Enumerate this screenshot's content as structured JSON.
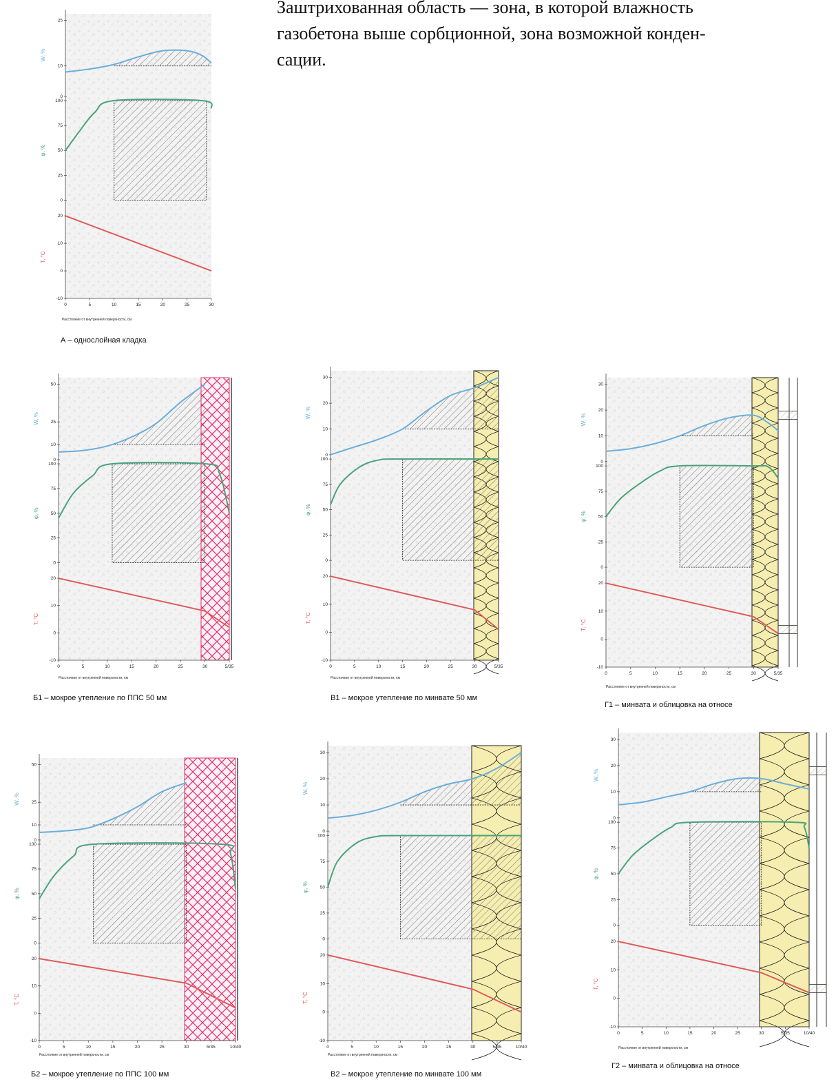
{
  "intro": {
    "line1": "Заштрихованная область — зона, в которой влажность",
    "line2": "газобетона выше сорбционной, зона возможной конден-",
    "line3": "сации."
  },
  "colors": {
    "w_curve": "#6aaedb",
    "phi_curve": "#4aa37a",
    "t_curve": "#e05a5a",
    "pps": "#e0306e",
    "minwool_fill": "#f6eeb0",
    "masonry_fill": "#f2f2f2"
  },
  "axis_labels": {
    "w": "W, %",
    "phi": "φ, %",
    "t": "T, °C",
    "x": "Расстояние от внутренней поверхности, см"
  },
  "chart_data": [
    {
      "type": "line",
      "id": "A",
      "title": "А – однослойная кладка",
      "insulation": "none",
      "x_ticks": [
        "0",
        "5",
        "10",
        "15",
        "20",
        "25",
        "30"
      ],
      "xlim": [
        0,
        30
      ],
      "w_ticks": [
        "0",
        "10",
        "25"
      ],
      "w_ylim": [
        0,
        25
      ],
      "phi_ticks": [
        "0",
        "25",
        "50",
        "75",
        "100"
      ],
      "t_ticks": [
        "-10",
        "0",
        "10",
        "20"
      ],
      "series": [
        {
          "quantity": "W",
          "x": [
            0,
            5,
            10,
            15,
            20,
            25,
            28,
            30
          ],
          "y": [
            8.0,
            9.0,
            10.5,
            13.0,
            15.0,
            15.0,
            13.5,
            11.0
          ]
        },
        {
          "quantity": "phi",
          "x": [
            0,
            3,
            6,
            10,
            28,
            30
          ],
          "y": [
            50,
            70,
            88,
            100,
            100,
            92
          ]
        },
        {
          "quantity": "T",
          "x": [
            0,
            30
          ],
          "y": [
            20,
            0
          ]
        }
      ],
      "hatched_w": {
        "x": [
          10,
          30
        ],
        "level": 10
      },
      "hatched_phi": {
        "x": [
          10,
          29
        ],
        "from": 0,
        "to": 100
      }
    },
    {
      "type": "line",
      "id": "B1",
      "title": "Б1 – мокрое утепление по ППС 50 мм",
      "insulation": "pps",
      "x_ticks": [
        "0",
        "5",
        "10",
        "15",
        "20",
        "25",
        "30",
        "5/35"
      ],
      "xlim": [
        0,
        35
      ],
      "wall_end": 30,
      "w_ticks": [
        "0",
        "10",
        "25",
        "50"
      ],
      "w_ylim": [
        0,
        50
      ],
      "phi_ticks": [
        "0",
        "25",
        "50",
        "75",
        "100"
      ],
      "t_ticks": [
        "-10",
        "0",
        "10",
        "20"
      ],
      "series": [
        {
          "quantity": "W",
          "x": [
            0,
            5,
            10,
            15,
            20,
            25,
            30
          ],
          "y": [
            5,
            6,
            9,
            15,
            24,
            38,
            50
          ]
        },
        {
          "quantity": "phi",
          "x": [
            0,
            3,
            7,
            11,
            30,
            33,
            35
          ],
          "y": [
            45,
            70,
            88,
            100,
            100,
            90,
            50
          ]
        },
        {
          "quantity": "T",
          "x": [
            0,
            30,
            35
          ],
          "y": [
            20,
            8,
            2
          ]
        }
      ],
      "hatched_w": {
        "x": [
          11,
          30
        ],
        "level": 10
      },
      "hatched_phi": {
        "x": [
          11,
          30
        ],
        "from": 0,
        "to": 100
      }
    },
    {
      "type": "line",
      "id": "V1",
      "title": "В1 – мокрое утепление по минвате 50 мм",
      "insulation": "minwool",
      "x_ticks": [
        "0",
        "5",
        "10",
        "15",
        "20",
        "25",
        "30",
        "5/35"
      ],
      "xlim": [
        0,
        35
      ],
      "wall_end": 30,
      "w_ticks": [
        "0",
        "10",
        "20",
        "30"
      ],
      "w_ylim": [
        0,
        30
      ],
      "phi_ticks": [
        "0",
        "25",
        "50",
        "75",
        "100"
      ],
      "t_ticks": [
        "-10",
        "0",
        "10",
        "20"
      ],
      "series": [
        {
          "quantity": "W",
          "x": [
            0,
            5,
            10,
            15,
            20,
            25,
            30,
            35
          ],
          "y": [
            0,
            3,
            6,
            10,
            17,
            23,
            26,
            30
          ]
        },
        {
          "quantity": "phi",
          "x": [
            0,
            2,
            6,
            10,
            15,
            35
          ],
          "y": [
            55,
            75,
            92,
            99,
            100,
            100
          ]
        },
        {
          "quantity": "T",
          "x": [
            0,
            30,
            35
          ],
          "y": [
            20,
            8,
            1
          ]
        }
      ],
      "hatched_w": {
        "x": [
          15,
          35
        ],
        "level": 10
      },
      "hatched_phi": {
        "x": [
          15,
          35
        ],
        "from": 0,
        "to": 100
      }
    },
    {
      "type": "line",
      "id": "G1",
      "title": "Г1 – минвата и облицовка на относе",
      "insulation": "minwool_facing",
      "x_ticks": [
        "0",
        "5",
        "10",
        "15",
        "20",
        "25",
        "30",
        "5/35"
      ],
      "xlim": [
        0,
        35
      ],
      "wall_end": 30,
      "w_ticks": [
        "0",
        "10",
        "20",
        "30"
      ],
      "w_ylim": [
        0,
        30
      ],
      "phi_ticks": [
        "0",
        "25",
        "50",
        "75",
        "100"
      ],
      "t_ticks": [
        "-10",
        "0",
        "10",
        "20"
      ],
      "series": [
        {
          "quantity": "W",
          "x": [
            0,
            5,
            10,
            15,
            20,
            25,
            30,
            33,
            35
          ],
          "y": [
            4,
            5,
            7,
            10,
            14,
            17,
            18,
            15,
            12
          ]
        },
        {
          "quantity": "phi",
          "x": [
            0,
            3,
            7,
            11,
            15,
            30,
            33,
            35
          ],
          "y": [
            50,
            68,
            83,
            95,
            100,
            100,
            99,
            88
          ]
        },
        {
          "quantity": "T",
          "x": [
            0,
            30,
            35
          ],
          "y": [
            20,
            8,
            2
          ]
        }
      ],
      "hatched_w": {
        "x": [
          15,
          30
        ],
        "level": 10
      },
      "hatched_phi": {
        "x": [
          15,
          30
        ],
        "from": 0,
        "to": 100
      }
    },
    {
      "type": "line",
      "id": "B2",
      "title": "Б2 – мокрое утепление по ППС 100 мм",
      "insulation": "pps",
      "x_ticks": [
        "0",
        "5",
        "10",
        "15",
        "20",
        "25",
        "30",
        "5/35",
        "10/40"
      ],
      "xlim": [
        0,
        40
      ],
      "wall_end": 30,
      "w_ticks": [
        "0",
        "10",
        "25",
        "50"
      ],
      "w_ylim": [
        0,
        50
      ],
      "phi_ticks": [
        "0",
        "25",
        "50",
        "75",
        "100"
      ],
      "t_ticks": [
        "-10",
        "0",
        "10",
        "20"
      ],
      "series": [
        {
          "quantity": "W",
          "x": [
            0,
            5,
            10,
            15,
            20,
            25,
            30
          ],
          "y": [
            5,
            6,
            8,
            14,
            22,
            32,
            38
          ]
        },
        {
          "quantity": "phi",
          "x": [
            0,
            3,
            7,
            11,
            37,
            39,
            40
          ],
          "y": [
            45,
            68,
            88,
            100,
            100,
            90,
            55
          ]
        },
        {
          "quantity": "T",
          "x": [
            0,
            30,
            40
          ],
          "y": [
            20,
            11,
            2
          ]
        }
      ],
      "hatched_w": {
        "x": [
          11,
          30
        ],
        "level": 10
      },
      "hatched_phi": {
        "x": [
          11,
          30
        ],
        "from": 0,
        "to": 100
      }
    },
    {
      "type": "line",
      "id": "V2",
      "title": "В2 – мокрое утепление по минвате 100 мм",
      "insulation": "minwool",
      "x_ticks": [
        "0",
        "5",
        "10",
        "15",
        "20",
        "25",
        "30",
        "5/35",
        "10/40"
      ],
      "xlim": [
        0,
        40
      ],
      "wall_end": 30,
      "w_ticks": [
        "0",
        "10",
        "20",
        "30"
      ],
      "w_ylim": [
        0,
        30
      ],
      "phi_ticks": [
        "0",
        "25",
        "50",
        "75",
        "100"
      ],
      "t_ticks": [
        "-10",
        "0",
        "10",
        "20"
      ],
      "series": [
        {
          "quantity": "W",
          "x": [
            0,
            5,
            10,
            15,
            20,
            25,
            30,
            35,
            40
          ],
          "y": [
            5,
            6,
            8,
            11,
            15,
            18,
            20,
            24,
            30
          ]
        },
        {
          "quantity": "phi",
          "x": [
            0,
            2,
            6,
            10,
            15,
            40
          ],
          "y": [
            50,
            75,
            93,
            99,
            100,
            100
          ]
        },
        {
          "quantity": "T",
          "x": [
            0,
            30,
            40
          ],
          "y": [
            20,
            8,
            0
          ]
        }
      ],
      "hatched_w": {
        "x": [
          15,
          40
        ],
        "level": 10
      },
      "hatched_phi": {
        "x": [
          15,
          40
        ],
        "from": 0,
        "to": 100
      }
    },
    {
      "type": "line",
      "id": "G2",
      "title": "Г2 – минвата и облицовка на относе",
      "insulation": "minwool_facing",
      "x_ticks": [
        "0",
        "5",
        "10",
        "15",
        "20",
        "25",
        "30",
        "5/35",
        "10/40"
      ],
      "xlim": [
        0,
        40
      ],
      "wall_end": 30,
      "w_ticks": [
        "0",
        "10",
        "20",
        "30"
      ],
      "w_ylim": [
        0,
        30
      ],
      "phi_ticks": [
        "0",
        "25",
        "50",
        "75",
        "100"
      ],
      "t_ticks": [
        "-10",
        "0",
        "10",
        "20"
      ],
      "series": [
        {
          "quantity": "W",
          "x": [
            0,
            5,
            10,
            15,
            20,
            25,
            30,
            35,
            40
          ],
          "y": [
            5,
            6,
            8,
            10,
            13,
            15,
            15,
            13,
            11
          ]
        },
        {
          "quantity": "phi",
          "x": [
            0,
            3,
            7,
            11,
            15,
            37,
            39,
            40
          ],
          "y": [
            50,
            68,
            83,
            95,
            100,
            100,
            95,
            75
          ]
        },
        {
          "quantity": "T",
          "x": [
            0,
            30,
            40
          ],
          "y": [
            20,
            9,
            2
          ]
        }
      ],
      "hatched_w": {
        "x": [
          15,
          30
        ],
        "level": 10
      },
      "hatched_phi": {
        "x": [
          15,
          30
        ],
        "from": 0,
        "to": 100
      }
    }
  ]
}
